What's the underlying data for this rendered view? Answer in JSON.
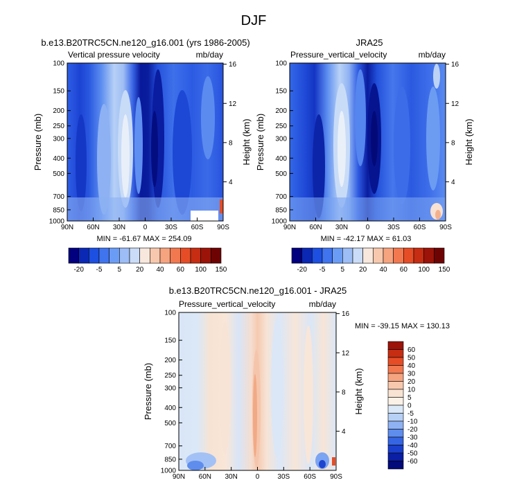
{
  "figure": {
    "title": "DJF"
  },
  "chart_data": [
    {
      "type": "heatmap",
      "title": "b.e13.B20TRC5CN.ne120_g16.001 (yrs 1986-2005)",
      "subtitle_left": "Vertical pressure velocity",
      "subtitle_right": "mb/day",
      "ylabel": "Pressure (mb)",
      "ylabel_right": "Height (km)",
      "x_ticks": [
        "90N",
        "60N",
        "30N",
        "0",
        "30S",
        "60S",
        "90S"
      ],
      "y_ticks": [
        "100",
        "150",
        "200",
        "250",
        "300",
        "400",
        "500",
        "700",
        "850",
        "1000"
      ],
      "y_ticks_right": [
        "16",
        "12",
        "8",
        "4"
      ],
      "stats": "MIN = -61.67  MAX = 254.09",
      "colorbar": {
        "orientation": "horizontal",
        "labels": [
          "-20",
          "-5",
          "5",
          "20",
          "40",
          "60",
          "100",
          "150"
        ],
        "colors": [
          "#02007e",
          "#0b28b4",
          "#1d4fe0",
          "#3f74ee",
          "#6b9cf5",
          "#9cbdf6",
          "#cadcf7",
          "#f7e7dc",
          "#f7c8ad",
          "#f6a47f",
          "#f2784f",
          "#e64d27",
          "#c62d12",
          "#9c1309",
          "#6e0303"
        ]
      }
    },
    {
      "type": "heatmap",
      "title": "JRA25",
      "subtitle_left": "Pressure_vertical_velocity",
      "subtitle_right": "mb/day",
      "ylabel": "Pressure (mb)",
      "ylabel_right": "Height (km)",
      "x_ticks": [
        "90N",
        "60N",
        "30N",
        "0",
        "30S",
        "60S",
        "90S"
      ],
      "y_ticks": [
        "100",
        "150",
        "200",
        "250",
        "300",
        "400",
        "500",
        "700",
        "850",
        "1000"
      ],
      "y_ticks_right": [
        "16",
        "12",
        "8",
        "4"
      ],
      "stats": "MIN = -42.17  MAX = 61.03",
      "colorbar": {
        "orientation": "horizontal",
        "labels": [
          "-20",
          "-5",
          "5",
          "20",
          "40",
          "60",
          "100",
          "150"
        ],
        "colors": [
          "#02007e",
          "#0b28b4",
          "#1d4fe0",
          "#3f74ee",
          "#6b9cf5",
          "#9cbdf6",
          "#cadcf7",
          "#f7e7dc",
          "#f7c8ad",
          "#f6a47f",
          "#f2784f",
          "#e64d27",
          "#c62d12",
          "#9c1309",
          "#6e0303"
        ]
      }
    },
    {
      "type": "heatmap",
      "title": "b.e13.B20TRC5CN.ne120_g16.001 - JRA25",
      "subtitle_left": "Pressure_vertical_velocity",
      "subtitle_right": "mb/day",
      "ylabel": "Pressure (mb)",
      "ylabel_right": "Height (km)",
      "x_ticks": [
        "90N",
        "60N",
        "30N",
        "0",
        "30S",
        "60S",
        "90S"
      ],
      "y_ticks": [
        "100",
        "150",
        "200",
        "250",
        "300",
        "400",
        "500",
        "700",
        "850",
        "1000"
      ],
      "y_ticks_right": [
        "16",
        "12",
        "8",
        "4"
      ],
      "stats": "MIN = -39.15  MAX = 130.13",
      "colorbar": {
        "orientation": "vertical",
        "labels": [
          "60",
          "50",
          "40",
          "30",
          "20",
          "10",
          "5",
          "0",
          "-5",
          "-10",
          "-20",
          "-30",
          "-40",
          "-50",
          "-60"
        ],
        "colors": [
          "#9c1309",
          "#c62d12",
          "#e64d27",
          "#f2784f",
          "#f6a47f",
          "#f7c8ad",
          "#f8e3d2",
          "#fbf1e6",
          "#dbe8f7",
          "#b7d0f5",
          "#8fb2f2",
          "#5f8ded",
          "#3565e3",
          "#1a3fcc",
          "#0a1fa3",
          "#030a7a"
        ]
      }
    }
  ]
}
